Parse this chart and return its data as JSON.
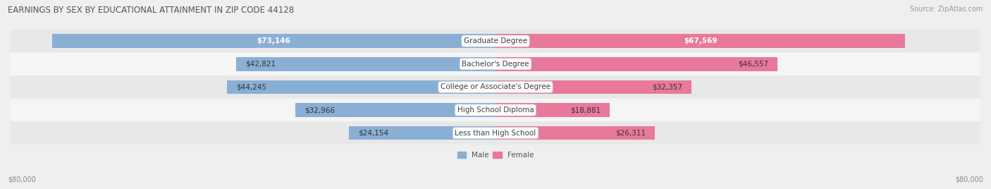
{
  "title": "EARNINGS BY SEX BY EDUCATIONAL ATTAINMENT IN ZIP CODE 44128",
  "source": "Source: ZipAtlas.com",
  "categories": [
    "Less than High School",
    "High School Diploma",
    "College or Associate's Degree",
    "Bachelor's Degree",
    "Graduate Degree"
  ],
  "male_values": [
    24154,
    32966,
    44245,
    42821,
    73146
  ],
  "female_values": [
    26311,
    18881,
    32357,
    46557,
    67569
  ],
  "male_labels": [
    "$24,154",
    "$32,966",
    "$44,245",
    "$42,821",
    "$73,146"
  ],
  "female_labels": [
    "$26,311",
    "$18,881",
    "$32,357",
    "$46,557",
    "$67,569"
  ],
  "max_val": 80000,
  "male_color": "#8aafd4",
  "female_color": "#e8799b",
  "bg_color": "#efefef",
  "row_colors": [
    "#e8e8e8",
    "#f5f5f5"
  ],
  "title_color": "#555555",
  "source_color": "#999999",
  "axis_label_color": "#888888",
  "legend_male_color": "#8aafd4",
  "legend_female_color": "#e8799b"
}
